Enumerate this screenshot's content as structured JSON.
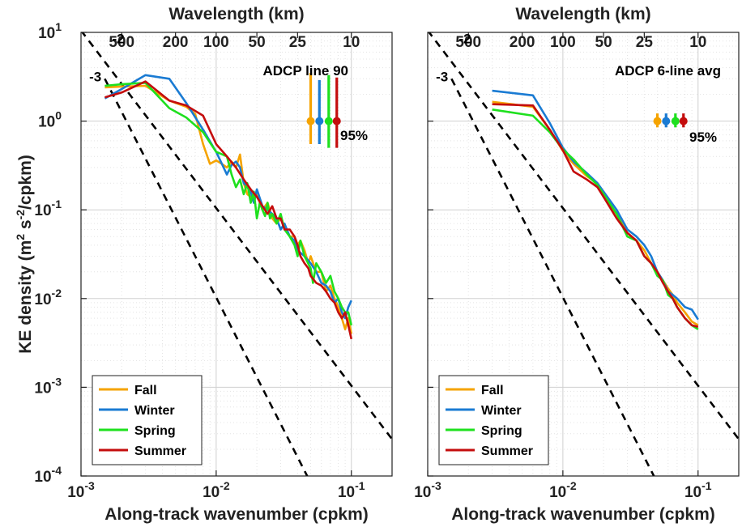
{
  "chart_data": [
    {
      "type": "line",
      "panel": "left",
      "title": "ADCP line 90",
      "xlabel": "Along-track wavenumber (cpkm)",
      "ylabel": "KE density (m² s⁻²/cpkm)",
      "top_xlabel": "Wavelength (km)",
      "xscale": "log",
      "yscale": "log",
      "xlim": [
        0.001,
        0.2
      ],
      "ylim": [
        0.0001,
        10
      ],
      "x_ticks": [
        {
          "v": 0.001,
          "b": "10",
          "e": "-3"
        },
        {
          "v": 0.01,
          "b": "10",
          "e": "-2"
        },
        {
          "v": 0.1,
          "b": "10",
          "e": "-1"
        }
      ],
      "y_ticks": [
        {
          "v": 0.0001,
          "b": "10",
          "e": "-4"
        },
        {
          "v": 0.001,
          "b": "10",
          "e": "-3"
        },
        {
          "v": 0.01,
          "b": "10",
          "e": "-2"
        },
        {
          "v": 0.1,
          "b": "10",
          "e": "-1"
        },
        {
          "v": 1,
          "b": "10",
          "e": "0"
        },
        {
          "v": 10,
          "b": "10",
          "e": "1"
        }
      ],
      "top_ticks": [
        {
          "v": 0.002,
          "label": "500"
        },
        {
          "v": 0.005,
          "label": "200"
        },
        {
          "v": 0.01,
          "label": "100"
        },
        {
          "v": 0.02,
          "label": "50"
        },
        {
          "v": 0.04,
          "label": "25"
        },
        {
          "v": 0.1,
          "label": "10"
        }
      ],
      "grid": true,
      "reference_lines": [
        {
          "label": "-2",
          "slope": -2,
          "x": [
            0.001,
            0.2
          ],
          "y": [
            10.5,
            0.00026
          ],
          "label_x": 0.0017,
          "label_y": 7.5
        },
        {
          "label": "-3",
          "slope": -3,
          "x": [
            0.0015,
            0.06
          ],
          "y": [
            3.0,
            4.85e-05
          ],
          "label_x": 0.00115,
          "label_y": 2.8
        }
      ],
      "ci_label": "95%",
      "ci_bars": [
        {
          "series": "Fall",
          "x": 0.05,
          "center": 1.0,
          "low": 0.55,
          "high": 3.5
        },
        {
          "series": "Winter",
          "x": 0.058,
          "center": 1.0,
          "low": 0.55,
          "high": 2.9
        },
        {
          "series": "Spring",
          "x": 0.068,
          "center": 1.0,
          "low": 0.5,
          "high": 3.3
        },
        {
          "series": "Summer",
          "x": 0.078,
          "center": 1.0,
          "low": 0.5,
          "high": 3.1
        }
      ],
      "legend_placement": "bottom-left",
      "series": [
        {
          "name": "Fall",
          "color": "#f5a300",
          "x": [
            0.0015,
            0.002,
            0.003,
            0.0045,
            0.006,
            0.007,
            0.008,
            0.009,
            0.01,
            0.011,
            0.012,
            0.013,
            0.014,
            0.015,
            0.016,
            0.017,
            0.018,
            0.019,
            0.02,
            0.022,
            0.024,
            0.026,
            0.028,
            0.03,
            0.032,
            0.035,
            0.038,
            0.04,
            0.042,
            0.045,
            0.048,
            0.05,
            0.055,
            0.06,
            0.065,
            0.07,
            0.075,
            0.08,
            0.085,
            0.09,
            0.095,
            0.1
          ],
          "y": [
            2.4,
            2.45,
            2.5,
            1.7,
            1.45,
            1.2,
            0.55,
            0.33,
            0.36,
            0.33,
            0.3,
            0.35,
            0.3,
            0.42,
            0.2,
            0.15,
            0.14,
            0.13,
            0.15,
            0.1,
            0.12,
            0.08,
            0.07,
            0.08,
            0.065,
            0.05,
            0.05,
            0.04,
            0.045,
            0.035,
            0.025,
            0.03,
            0.02,
            0.02,
            0.012,
            0.014,
            0.01,
            0.008,
            0.006,
            0.0045,
            0.006,
            0.004
          ]
        },
        {
          "name": "Winter",
          "color": "#1a7bd3",
          "x": [
            0.0015,
            0.002,
            0.003,
            0.0045,
            0.006,
            0.008,
            0.01,
            0.012,
            0.013,
            0.014,
            0.015,
            0.016,
            0.017,
            0.018,
            0.019,
            0.02,
            0.022,
            0.024,
            0.026,
            0.028,
            0.03,
            0.032,
            0.035,
            0.038,
            0.04,
            0.045,
            0.05,
            0.055,
            0.06,
            0.065,
            0.07,
            0.075,
            0.08,
            0.085,
            0.09,
            0.095,
            0.1
          ],
          "y": [
            1.8,
            2.3,
            3.3,
            3.0,
            1.6,
            0.8,
            0.45,
            0.25,
            0.32,
            0.35,
            0.3,
            0.2,
            0.18,
            0.16,
            0.12,
            0.17,
            0.11,
            0.1,
            0.09,
            0.08,
            0.06,
            0.07,
            0.05,
            0.045,
            0.035,
            0.03,
            0.025,
            0.02,
            0.015,
            0.014,
            0.012,
            0.009,
            0.01,
            0.007,
            0.006,
            0.008,
            0.0095
          ]
        },
        {
          "name": "Spring",
          "color": "#1ee01e",
          "x": [
            0.0015,
            0.002,
            0.003,
            0.0045,
            0.006,
            0.008,
            0.01,
            0.012,
            0.013,
            0.014,
            0.015,
            0.016,
            0.017,
            0.018,
            0.019,
            0.02,
            0.021,
            0.022,
            0.023,
            0.024,
            0.025,
            0.026,
            0.028,
            0.03,
            0.032,
            0.035,
            0.038,
            0.04,
            0.042,
            0.045,
            0.05,
            0.052,
            0.055,
            0.06,
            0.065,
            0.07,
            0.075,
            0.08,
            0.085,
            0.09,
            0.095,
            0.1
          ],
          "y": [
            2.5,
            2.6,
            2.7,
            1.4,
            1.1,
            0.75,
            0.45,
            0.4,
            0.25,
            0.18,
            0.22,
            0.15,
            0.2,
            0.12,
            0.16,
            0.08,
            0.12,
            0.1,
            0.085,
            0.12,
            0.08,
            0.09,
            0.07,
            0.09,
            0.06,
            0.05,
            0.04,
            0.03,
            0.045,
            0.03,
            0.022,
            0.015,
            0.025,
            0.02,
            0.015,
            0.018,
            0.012,
            0.01,
            0.008,
            0.007,
            0.007,
            0.005
          ]
        },
        {
          "name": "Summer",
          "color": "#c40d0d",
          "x": [
            0.0015,
            0.002,
            0.003,
            0.0045,
            0.006,
            0.008,
            0.01,
            0.012,
            0.014,
            0.016,
            0.018,
            0.02,
            0.022,
            0.024,
            0.026,
            0.028,
            0.03,
            0.032,
            0.035,
            0.038,
            0.04,
            0.042,
            0.045,
            0.048,
            0.05,
            0.055,
            0.06,
            0.065,
            0.07,
            0.075,
            0.08,
            0.085,
            0.09,
            0.095,
            0.1
          ],
          "y": [
            1.85,
            2.1,
            2.8,
            1.7,
            1.5,
            1.15,
            0.55,
            0.4,
            0.3,
            0.22,
            0.17,
            0.14,
            0.11,
            0.09,
            0.11,
            0.08,
            0.08,
            0.06,
            0.06,
            0.05,
            0.04,
            0.03,
            0.025,
            0.022,
            0.018,
            0.015,
            0.014,
            0.012,
            0.01,
            0.009,
            0.007,
            0.006,
            0.007,
            0.005,
            0.0035
          ]
        }
      ]
    },
    {
      "type": "line",
      "panel": "right",
      "title": "ADCP 6-line avg",
      "xlabel": "Along-track wavenumber (cpkm)",
      "top_xlabel": "Wavelength (km)",
      "xscale": "log",
      "yscale": "log",
      "xlim": [
        0.001,
        0.2
      ],
      "ylim": [
        0.0001,
        10
      ],
      "x_ticks": [
        {
          "v": 0.001,
          "b": "10",
          "e": "-3"
        },
        {
          "v": 0.01,
          "b": "10",
          "e": "-2"
        },
        {
          "v": 0.1,
          "b": "10",
          "e": "-1"
        }
      ],
      "top_ticks": [
        {
          "v": 0.002,
          "label": "500"
        },
        {
          "v": 0.005,
          "label": "200"
        },
        {
          "v": 0.01,
          "label": "100"
        },
        {
          "v": 0.02,
          "label": "50"
        },
        {
          "v": 0.04,
          "label": "25"
        },
        {
          "v": 0.1,
          "label": "10"
        }
      ],
      "grid": true,
      "reference_lines": [
        {
          "label": "-2",
          "slope": -2,
          "x": [
            0.001,
            0.2
          ],
          "y": [
            10.5,
            0.00026
          ],
          "label_x": 0.0017,
          "label_y": 7.5
        },
        {
          "label": "-3",
          "slope": -3,
          "x": [
            0.0015,
            0.06
          ],
          "y": [
            3.0,
            4.85e-05
          ],
          "label_x": 0.00115,
          "label_y": 2.8
        }
      ],
      "ci_label": "95%",
      "ci_bars": [
        {
          "series": "Fall",
          "x": 0.05,
          "center": 1.0,
          "low": 0.85,
          "high": 1.22
        },
        {
          "series": "Winter",
          "x": 0.058,
          "center": 1.0,
          "low": 0.85,
          "high": 1.22
        },
        {
          "series": "Spring",
          "x": 0.068,
          "center": 1.0,
          "low": 0.85,
          "high": 1.22
        },
        {
          "series": "Summer",
          "x": 0.078,
          "center": 1.0,
          "low": 0.85,
          "high": 1.22
        }
      ],
      "legend_placement": "bottom-left",
      "series": [
        {
          "name": "Fall",
          "color": "#f5a300",
          "x": [
            0.003,
            0.006,
            0.008,
            0.01,
            0.012,
            0.015,
            0.018,
            0.02,
            0.025,
            0.03,
            0.035,
            0.04,
            0.045,
            0.05,
            0.055,
            0.06,
            0.065,
            0.07,
            0.08,
            0.09,
            0.1
          ],
          "y": [
            1.65,
            1.45,
            0.8,
            0.46,
            0.33,
            0.24,
            0.2,
            0.14,
            0.09,
            0.055,
            0.045,
            0.035,
            0.025,
            0.02,
            0.016,
            0.013,
            0.011,
            0.009,
            0.007,
            0.0055,
            0.005
          ]
        },
        {
          "name": "Winter",
          "color": "#1a7bd3",
          "x": [
            0.003,
            0.006,
            0.008,
            0.01,
            0.012,
            0.015,
            0.018,
            0.02,
            0.025,
            0.03,
            0.035,
            0.04,
            0.045,
            0.05,
            0.055,
            0.06,
            0.065,
            0.07,
            0.08,
            0.09,
            0.1
          ],
          "y": [
            2.2,
            1.95,
            0.95,
            0.5,
            0.35,
            0.26,
            0.2,
            0.16,
            0.1,
            0.06,
            0.05,
            0.04,
            0.03,
            0.02,
            0.016,
            0.012,
            0.011,
            0.01,
            0.008,
            0.0075,
            0.0058
          ]
        },
        {
          "name": "Spring",
          "color": "#1ee01e",
          "x": [
            0.003,
            0.006,
            0.008,
            0.01,
            0.012,
            0.015,
            0.018,
            0.02,
            0.025,
            0.03,
            0.035,
            0.04,
            0.045,
            0.05,
            0.055,
            0.06,
            0.065,
            0.07,
            0.08,
            0.09,
            0.1
          ],
          "y": [
            1.35,
            1.15,
            0.75,
            0.48,
            0.37,
            0.25,
            0.19,
            0.15,
            0.09,
            0.05,
            0.045,
            0.03,
            0.025,
            0.018,
            0.016,
            0.011,
            0.01,
            0.008,
            0.006,
            0.005,
            0.0045
          ]
        },
        {
          "name": "Summer",
          "color": "#c40d0d",
          "x": [
            0.003,
            0.006,
            0.008,
            0.01,
            0.012,
            0.015,
            0.018,
            0.02,
            0.025,
            0.03,
            0.035,
            0.04,
            0.045,
            0.05,
            0.055,
            0.06,
            0.065,
            0.07,
            0.08,
            0.09,
            0.1
          ],
          "y": [
            1.55,
            1.5,
            0.8,
            0.47,
            0.27,
            0.22,
            0.18,
            0.14,
            0.08,
            0.055,
            0.045,
            0.03,
            0.025,
            0.02,
            0.015,
            0.012,
            0.01,
            0.008,
            0.006,
            0.005,
            0.0048
          ]
        }
      ]
    }
  ]
}
